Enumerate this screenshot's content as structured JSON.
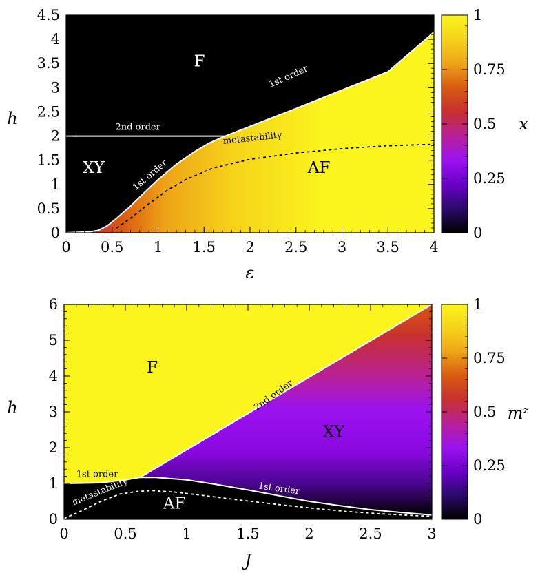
{
  "colors": {
    "black": "#000000",
    "white": "#ffffff",
    "colormap": [
      "#000000",
      "#2a0a6a",
      "#6a00c8",
      "#9a12f0",
      "#b8209a",
      "#c83030",
      "#d85a10",
      "#eea418",
      "#f6d21a",
      "#fbf51d"
    ]
  },
  "chart_data": [
    {
      "type": "heatmap",
      "xlabel": "ε",
      "ylabel": "h",
      "colorbar_label": "x",
      "xlim": [
        0,
        4
      ],
      "ylim": [
        0,
        4.5
      ],
      "xticks": [
        "0",
        "0.5",
        "1",
        "1.5",
        "2",
        "2.5",
        "3",
        "3.5",
        "4"
      ],
      "yticks": [
        "0",
        "0.5",
        "1",
        "1.5",
        "2",
        "2.5",
        "3",
        "3.5",
        "4",
        "4.5"
      ],
      "colorbar_ticks": [
        "0",
        "0.25",
        "0.5",
        "0.75",
        "1"
      ],
      "colorbar_range": [
        0,
        1
      ],
      "regions": [
        {
          "label": "F",
          "x": 1.45,
          "y": 3.55
        },
        {
          "label": "XY",
          "x": 0.3,
          "y": 1.35
        },
        {
          "label": "AF",
          "x": 2.75,
          "y": 1.35
        }
      ],
      "annotations": [
        {
          "text": "2nd order",
          "x": 0.78,
          "y": 2.13,
          "angle": 0
        },
        {
          "text": "1st order",
          "x": 2.43,
          "y": 3.18,
          "angle": -24
        },
        {
          "text": "1st order",
          "x": 0.93,
          "y": 1.15,
          "angle": -40
        },
        {
          "text": "metastability",
          "x": 2.03,
          "y": 1.9,
          "angle": -6
        }
      ],
      "boundaries": [
        {
          "name": "2nd order",
          "style": "solid",
          "color": "white",
          "points": [
            [
              0,
              2
            ],
            [
              1.73,
              2
            ]
          ]
        },
        {
          "name": "1st order upper",
          "style": "solid",
          "color": "white",
          "points": [
            [
              1.73,
              2
            ],
            [
              2,
              2.2
            ],
            [
              2.5,
              2.57
            ],
            [
              3,
              2.95
            ],
            [
              3.5,
              3.33
            ],
            [
              4,
              4.15
            ]
          ]
        },
        {
          "name": "1st order lower",
          "style": "solid",
          "color": "white",
          "points": [
            [
              0,
              0
            ],
            [
              0.25,
              0.02
            ],
            [
              0.35,
              0.05
            ],
            [
              0.45,
              0.15
            ],
            [
              0.55,
              0.3
            ],
            [
              0.7,
              0.55
            ],
            [
              0.85,
              0.83
            ],
            [
              1.0,
              1.1
            ],
            [
              1.2,
              1.42
            ],
            [
              1.4,
              1.68
            ],
            [
              1.55,
              1.85
            ],
            [
              1.73,
              2
            ]
          ]
        },
        {
          "name": "metastability",
          "style": "dashed",
          "color": "black",
          "points": [
            [
              0.55,
              0.1
            ],
            [
              0.7,
              0.3
            ],
            [
              0.9,
              0.6
            ],
            [
              1.1,
              0.88
            ],
            [
              1.3,
              1.1
            ],
            [
              1.6,
              1.34
            ],
            [
              2.0,
              1.52
            ],
            [
              2.5,
              1.65
            ],
            [
              3.0,
              1.74
            ],
            [
              3.5,
              1.8
            ],
            [
              4.0,
              1.83
            ]
          ]
        }
      ]
    },
    {
      "type": "heatmap",
      "xlabel": "J",
      "ylabel": "h",
      "colorbar_label": "mᶻ",
      "xlim": [
        0,
        3
      ],
      "ylim": [
        0,
        6
      ],
      "xticks": [
        "0",
        "0.5",
        "1",
        "1.5",
        "2",
        "2.5",
        "3"
      ],
      "yticks": [
        "0",
        "1",
        "2",
        "3",
        "4",
        "5",
        "6"
      ],
      "colorbar_ticks": [
        "0",
        "0.25",
        "0.5",
        "0.75",
        "1"
      ],
      "colorbar_range": [
        0,
        1
      ],
      "regions": [
        {
          "label": "F",
          "x": 0.72,
          "y": 4.25
        },
        {
          "label": "XY",
          "x": 2.2,
          "y": 2.45
        },
        {
          "label": "AF",
          "x": 0.9,
          "y": 0.45
        }
      ],
      "annotations": [
        {
          "text": "2nd order",
          "x": 1.72,
          "y": 3.4,
          "angle": -36
        },
        {
          "text": "1st order",
          "x": 0.27,
          "y": 1.18,
          "angle": 0
        },
        {
          "text": "1st order",
          "x": 1.75,
          "y": 0.78,
          "angle": 8
        },
        {
          "text": "metastability",
          "x": 0.3,
          "y": 0.7,
          "angle": -22
        }
      ],
      "boundaries": [
        {
          "name": "2nd order",
          "style": "solid",
          "color": "white",
          "points": [
            [
              0.62,
              1.17
            ],
            [
              3,
              6
            ]
          ]
        },
        {
          "name": "1st order",
          "style": "solid",
          "color": "white",
          "points": [
            [
              0,
              1.0
            ],
            [
              0.3,
              1.02
            ],
            [
              0.5,
              1.1
            ],
            [
              0.62,
              1.17
            ],
            [
              0.75,
              1.17
            ],
            [
              1.0,
              1.1
            ],
            [
              1.25,
              0.97
            ],
            [
              1.5,
              0.82
            ],
            [
              1.75,
              0.66
            ],
            [
              2.0,
              0.5
            ],
            [
              2.25,
              0.38
            ],
            [
              2.5,
              0.27
            ],
            [
              2.75,
              0.19
            ],
            [
              3.0,
              0.12
            ]
          ]
        },
        {
          "name": "metastability",
          "style": "dashed",
          "color": "white",
          "points": [
            [
              0,
              0.02
            ],
            [
              0.15,
              0.25
            ],
            [
              0.3,
              0.5
            ],
            [
              0.45,
              0.7
            ],
            [
              0.6,
              0.78
            ],
            [
              0.72,
              0.8
            ],
            [
              0.9,
              0.76
            ],
            [
              1.1,
              0.68
            ],
            [
              1.4,
              0.55
            ],
            [
              1.7,
              0.43
            ],
            [
              2.0,
              0.32
            ],
            [
              2.3,
              0.22
            ],
            [
              2.6,
              0.15
            ],
            [
              3.0,
              0.08
            ]
          ]
        }
      ]
    }
  ]
}
